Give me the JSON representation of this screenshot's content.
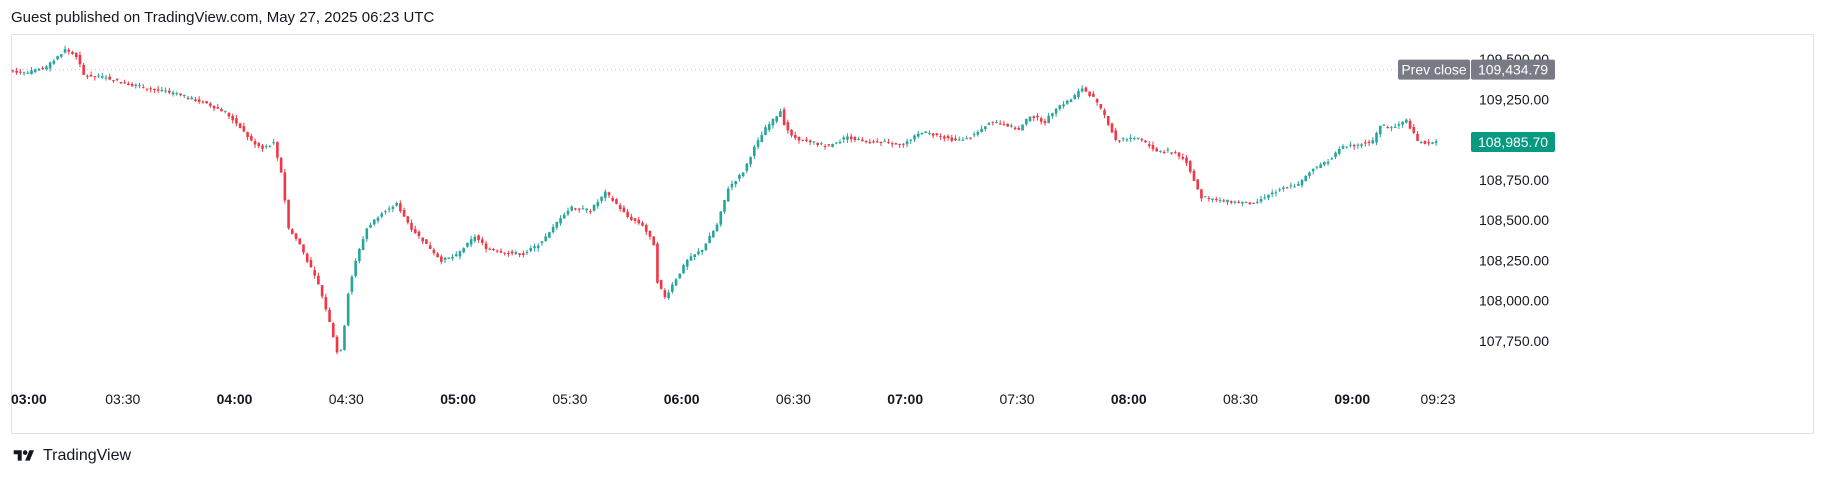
{
  "header": {
    "text": "Guest published on TradingView.com, May 27, 2025 06:23 UTC"
  },
  "footer": {
    "brand": "TradingView",
    "logo_icon": "tradingview-logo-icon"
  },
  "colors": {
    "up": "#26a69a",
    "down": "#f23645",
    "prev_close_badge": "#787b86",
    "last_price_badge": "#089981",
    "prev_close_line": "#f7a8ae"
  },
  "chart_data": {
    "type": "candlestick",
    "y_axis": {
      "ticks": [
        "109,500.00",
        "109,250.00",
        "108,750.00",
        "108,500.00",
        "108,250.00",
        "108,000.00",
        "107,750.00"
      ],
      "tick_values": [
        109500,
        109250,
        108750,
        108500,
        108250,
        108000,
        107750
      ],
      "range": [
        107570,
        109650
      ]
    },
    "x_axis": {
      "ticks": [
        {
          "label": "03:00",
          "bold": true
        },
        {
          "label": "03:30",
          "bold": false
        },
        {
          "label": "04:00",
          "bold": true
        },
        {
          "label": "04:30",
          "bold": false
        },
        {
          "label": "05:00",
          "bold": true
        },
        {
          "label": "05:30",
          "bold": false
        },
        {
          "label": "06:00",
          "bold": true
        },
        {
          "label": "06:30",
          "bold": false
        },
        {
          "label": "07:00",
          "bold": true
        },
        {
          "label": "07:30",
          "bold": false
        },
        {
          "label": "08:00",
          "bold": true
        },
        {
          "label": "08:30",
          "bold": false
        },
        {
          "label": "09:00",
          "bold": true
        },
        {
          "label": "09:23",
          "bold": false
        }
      ],
      "tick_minutes": [
        0,
        30,
        60,
        90,
        120,
        150,
        180,
        210,
        240,
        270,
        300,
        330,
        360,
        383
      ],
      "start": "03:00",
      "end": "09:23"
    },
    "prev_close": {
      "label": "Prev close",
      "value": "109,434.79",
      "price": 109434.79
    },
    "last_price": {
      "value": "108,985.70",
      "price": 108985.7
    },
    "price_path": [
      [
        0,
        109430
      ],
      [
        5,
        109415
      ],
      [
        10,
        109450
      ],
      [
        15,
        109560
      ],
      [
        18,
        109520
      ],
      [
        20,
        109400
      ],
      [
        25,
        109390
      ],
      [
        35,
        109330
      ],
      [
        45,
        109280
      ],
      [
        53,
        109225
      ],
      [
        58,
        109170
      ],
      [
        62,
        109080
      ],
      [
        65,
        108990
      ],
      [
        68,
        108950
      ],
      [
        71,
        108980
      ],
      [
        73,
        108800
      ],
      [
        75,
        108450
      ],
      [
        78,
        108350
      ],
      [
        80,
        108250
      ],
      [
        83,
        108100
      ],
      [
        85,
        107950
      ],
      [
        87,
        107780
      ],
      [
        88,
        107680
      ],
      [
        89,
        107700
      ],
      [
        90,
        107850
      ],
      [
        91,
        108050
      ],
      [
        93,
        108250
      ],
      [
        96,
        108450
      ],
      [
        100,
        108550
      ],
      [
        104,
        108600
      ],
      [
        108,
        108450
      ],
      [
        112,
        108350
      ],
      [
        116,
        108250
      ],
      [
        120,
        108280
      ],
      [
        125,
        108400
      ],
      [
        128,
        108330
      ],
      [
        133,
        108300
      ],
      [
        138,
        108290
      ],
      [
        142,
        108350
      ],
      [
        145,
        108420
      ],
      [
        148,
        108520
      ],
      [
        151,
        108580
      ],
      [
        156,
        108560
      ],
      [
        160,
        108670
      ],
      [
        163,
        108600
      ],
      [
        166,
        108520
      ],
      [
        170,
        108470
      ],
      [
        173,
        108350
      ],
      [
        174,
        108120
      ],
      [
        176,
        108020
      ],
      [
        178,
        108100
      ],
      [
        182,
        108250
      ],
      [
        186,
        108320
      ],
      [
        190,
        108470
      ],
      [
        193,
        108700
      ],
      [
        197,
        108800
      ],
      [
        200,
        108950
      ],
      [
        203,
        109070
      ],
      [
        205,
        109120
      ],
      [
        207,
        109180
      ],
      [
        208,
        109100
      ],
      [
        210,
        109020
      ],
      [
        215,
        108980
      ],
      [
        220,
        108960
      ],
      [
        225,
        109020
      ],
      [
        230,
        108980
      ],
      [
        235,
        108990
      ],
      [
        240,
        108970
      ],
      [
        245,
        109050
      ],
      [
        250,
        109020
      ],
      [
        255,
        108990
      ],
      [
        260,
        109040
      ],
      [
        263,
        109110
      ],
      [
        267,
        109100
      ],
      [
        271,
        109060
      ],
      [
        274,
        109150
      ],
      [
        278,
        109110
      ],
      [
        281,
        109200
      ],
      [
        285,
        109250
      ],
      [
        288,
        109320
      ],
      [
        291,
        109260
      ],
      [
        294,
        109150
      ],
      [
        297,
        109000
      ],
      [
        303,
        109010
      ],
      [
        308,
        108930
      ],
      [
        313,
        108920
      ],
      [
        316,
        108860
      ],
      [
        320,
        108640
      ],
      [
        326,
        108620
      ],
      [
        331,
        108610
      ],
      [
        334,
        108600
      ],
      [
        338,
        108660
      ],
      [
        342,
        108700
      ],
      [
        346,
        108720
      ],
      [
        350,
        108820
      ],
      [
        354,
        108870
      ],
      [
        358,
        108960
      ],
      [
        362,
        108970
      ],
      [
        366,
        108990
      ],
      [
        368,
        109080
      ],
      [
        372,
        109080
      ],
      [
        375,
        109120
      ],
      [
        378,
        108990
      ],
      [
        380,
        108980
      ],
      [
        383,
        108985.7
      ]
    ]
  }
}
